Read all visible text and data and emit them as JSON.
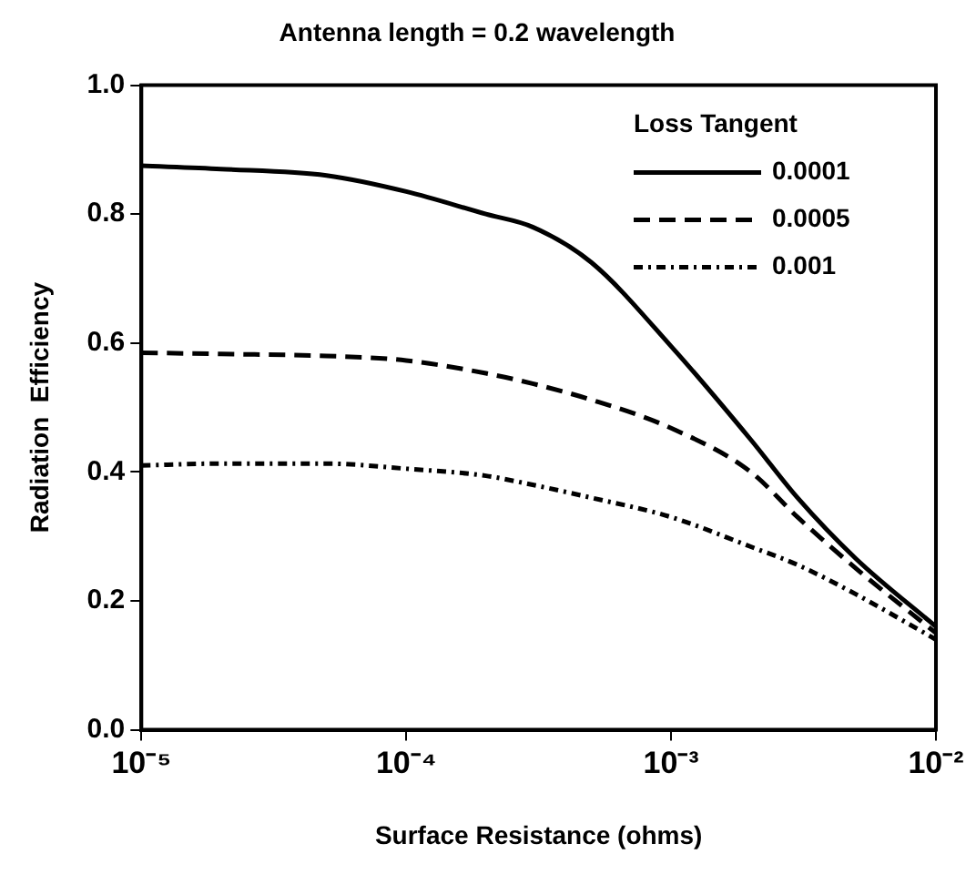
{
  "chart_data": {
    "type": "line",
    "title": "Antenna length = 0.2 wavelength",
    "xlabel": "Surface Resistance (ohms)",
    "ylabel": "Radiation  Efficiency",
    "legend_title": "Loss Tangent",
    "x": [
      1e-05,
      2e-05,
      5e-05,
      0.0001,
      0.0002,
      0.0003,
      0.0005,
      0.001,
      0.002,
      0.003,
      0.005,
      0.01
    ],
    "series": [
      {
        "name": "0.0001",
        "color": "#000000",
        "line_style": "solid",
        "values": [
          0.875,
          0.87,
          0.86,
          0.835,
          0.8,
          0.78,
          0.725,
          0.595,
          0.45,
          0.36,
          0.265,
          0.16
        ]
      },
      {
        "name": "0.0005",
        "color": "#000000",
        "line_style": "dashed",
        "values": [
          0.585,
          0.583,
          0.58,
          0.573,
          0.553,
          0.537,
          0.512,
          0.468,
          0.4,
          0.33,
          0.25,
          0.15
        ]
      },
      {
        "name": "0.001",
        "color": "#000000",
        "line_style": "dotted",
        "values": [
          0.41,
          0.413,
          0.413,
          0.405,
          0.394,
          0.38,
          0.36,
          0.33,
          0.284,
          0.256,
          0.21,
          0.14
        ]
      }
    ],
    "log": "x",
    "xlim": [
      1e-05,
      0.01
    ],
    "xticks": [
      {
        "value": 1e-05,
        "label": "10⁻⁵"
      },
      {
        "value": 0.0001,
        "label": "10⁻⁴"
      },
      {
        "value": 0.001,
        "label": "10⁻³"
      },
      {
        "value": 0.01,
        "label": "10⁻²"
      }
    ],
    "ylim": [
      0,
      1
    ],
    "yticks": [
      {
        "value": 0,
        "label": "0.0"
      },
      {
        "value": 0.2,
        "label": "0.2"
      },
      {
        "value": 0.4,
        "label": "0.4"
      },
      {
        "value": 0.6,
        "label": "0.6"
      },
      {
        "value": 0.8,
        "label": "0.8"
      },
      {
        "value": 1,
        "label": "1.0"
      }
    ],
    "grid": false,
    "legend": "top right",
    "marker": "none"
  }
}
